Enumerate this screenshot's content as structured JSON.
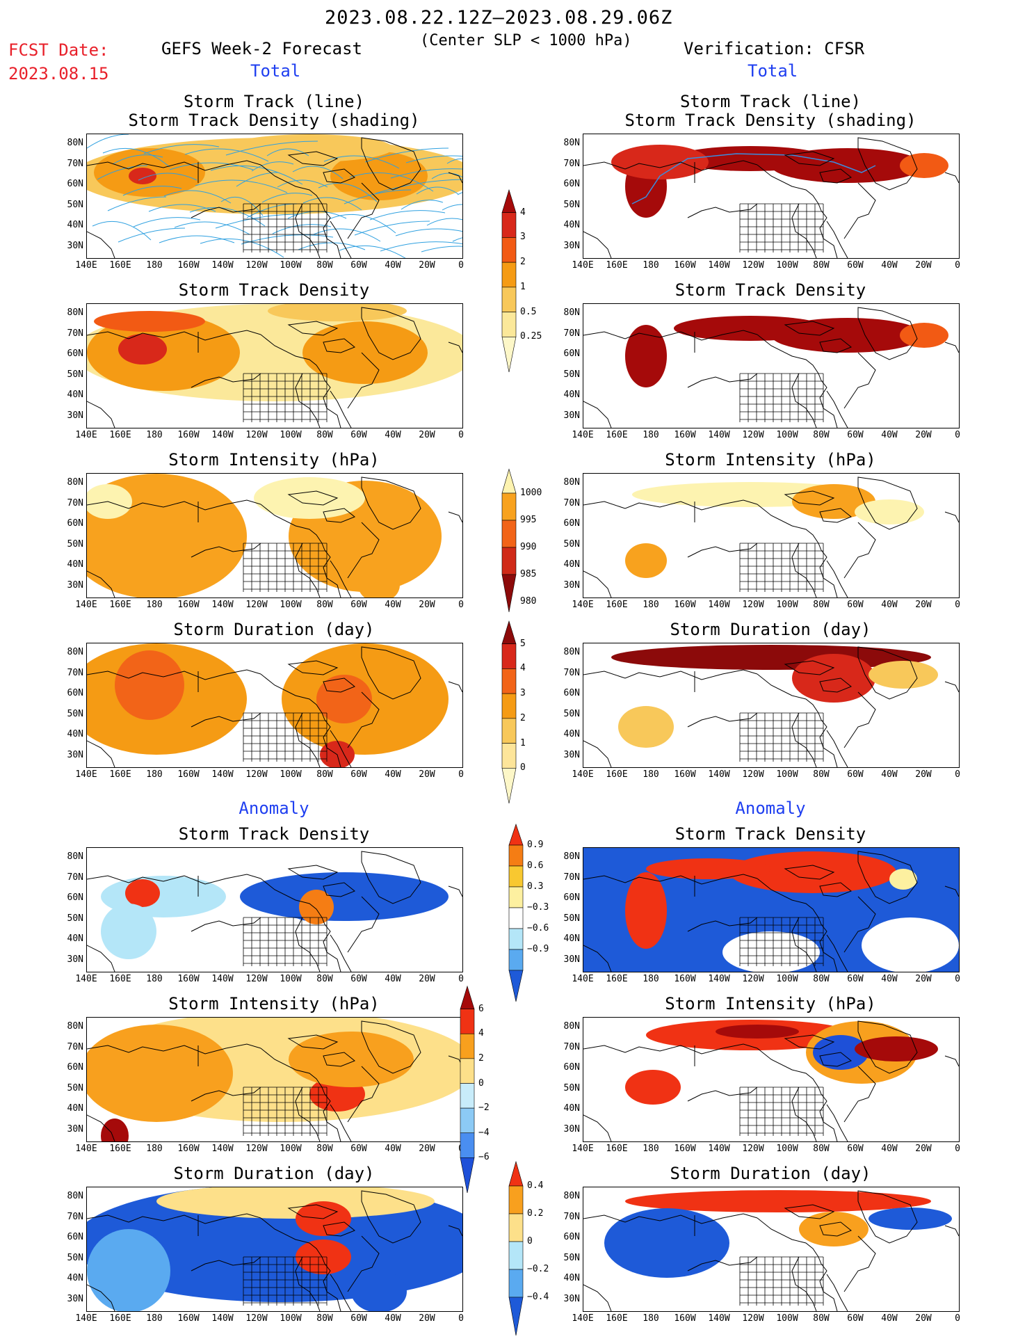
{
  "header": {
    "title": "2023.08.22.12Z–2023.08.29.06Z",
    "subtitle": "(Center SLP < 1000 hPa)",
    "fcst_label": "FCST Date:",
    "fcst_date": "2023.08.15",
    "left_model": "GEFS Week-2 Forecast",
    "right_model": "Verification: CFSR",
    "left_total": "Total",
    "right_total": "Total",
    "left_anomaly": "Anomaly",
    "right_anomaly": "Anomaly"
  },
  "panel_titles": {
    "track_line": "Storm Track (line)",
    "track_density_shading": "Storm Track Density (shading)",
    "track_density": "Storm Track Density",
    "intensity": "Storm Intensity (hPa)",
    "duration": "Storm Duration (day)"
  },
  "axes": {
    "lat_labels": [
      "80N",
      "70N",
      "60N",
      "50N",
      "40N",
      "30N"
    ],
    "lon_labels": [
      "140E",
      "160E",
      "180",
      "160W",
      "140W",
      "120W",
      "100W",
      "80W",
      "60W",
      "40W",
      "20W",
      "0"
    ]
  },
  "colorbars": {
    "density_total": {
      "labels": [
        "4",
        "3",
        "2",
        "1",
        "0.5",
        "0.25"
      ],
      "colors": [
        "#a50a0a",
        "#d8281a",
        "#f25a14",
        "#f59b14",
        "#f8c85a",
        "#fbe89a",
        "#fdf7c8"
      ]
    },
    "intensity_total": {
      "labels": [
        "1000",
        "995",
        "990",
        "985",
        "980"
      ],
      "colors": [
        "#fdf3b0",
        "#f8a21e",
        "#f26418",
        "#d02a18",
        "#8c0a0a"
      ]
    },
    "duration_total": {
      "labels": [
        "5",
        "4",
        "3",
        "2",
        "1",
        "0"
      ],
      "colors": [
        "#8c0a0a",
        "#d8281a",
        "#f26418",
        "#f59b14",
        "#f8c85a",
        "#fde59a",
        "#fdf7c8"
      ]
    },
    "density_anom": {
      "labels": [
        "0.9",
        "0.6",
        "0.3",
        "−0.3",
        "−0.6",
        "−0.9"
      ],
      "colors": [
        "#f03214",
        "#f57d14",
        "#f8c830",
        "#fdf0a0",
        "#ffffff",
        "#b4e6f8",
        "#5aaaf0",
        "#1e5ad8"
      ]
    },
    "intensity_anom": {
      "labels": [
        "6",
        "4",
        "2",
        "0",
        "−2",
        "−4",
        "−6"
      ],
      "colors": [
        "#a50a0a",
        "#f03214",
        "#f8a01e",
        "#fde08a",
        "#c8ecfa",
        "#8ccaf5",
        "#4a8ef0",
        "#1e50d8"
      ]
    },
    "duration_anom": {
      "labels": [
        "0.4",
        "0.2",
        "0",
        "−0.2",
        "−0.4"
      ],
      "colors": [
        "#f03214",
        "#f8a01e",
        "#fde08a",
        "#b4e6f8",
        "#5aaaf0",
        "#1e5ad8"
      ]
    }
  }
}
